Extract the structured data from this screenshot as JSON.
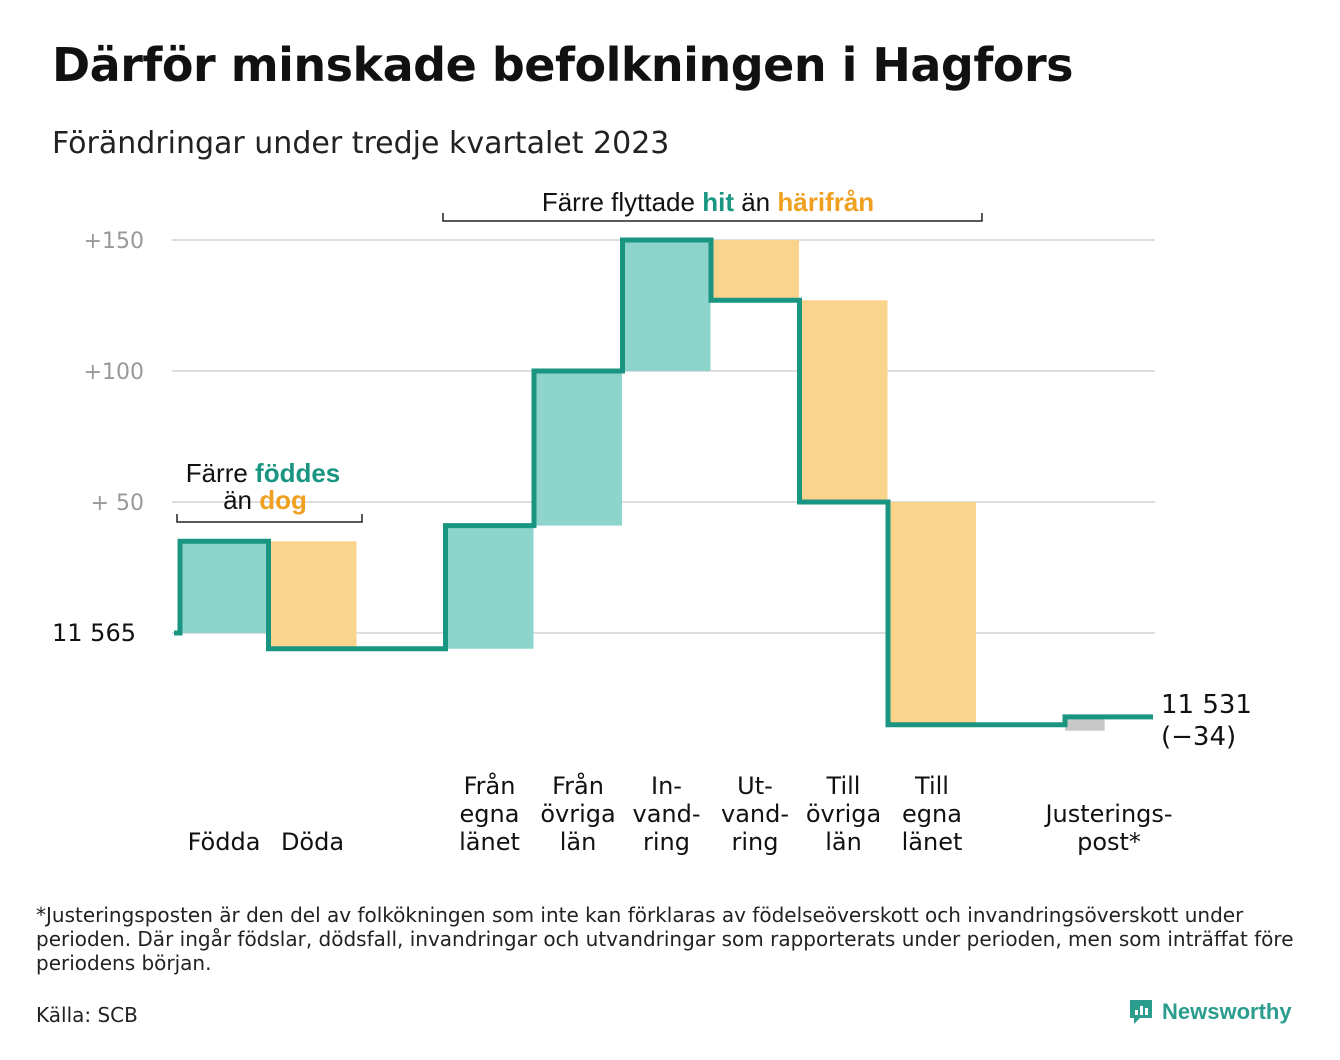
{
  "header": {
    "title": "Därför minskade befolkningen i Hagfors",
    "subtitle": "Förändringar under tredje kvartalet 2023"
  },
  "colors": {
    "increase": "#8dd5cc",
    "decrease": "#fad48c",
    "line": "#1a9582",
    "adjustment": "#c8c8c8",
    "grid": "#dddddd",
    "tick": "#999999",
    "teal_text": "#1a9582",
    "orange_text": "#f0a020"
  },
  "chart_data": {
    "type": "waterfall",
    "start_value": 11565,
    "start_label": "11   565",
    "end_label_line1": "11 531",
    "end_label_line2": "(−34)",
    "ylim": [
      -38,
      150
    ],
    "y_ticks": [
      {
        "value": 150,
        "label": "+150"
      },
      {
        "value": 100,
        "label": "+100"
      },
      {
        "value": 50,
        "label": "+  50"
      }
    ],
    "steps": [
      {
        "key": "fodda",
        "label": [
          "Födda"
        ],
        "change": 35,
        "kind": "increase"
      },
      {
        "key": "doda",
        "label": [
          "Döda"
        ],
        "change": -41,
        "kind": "decrease"
      },
      {
        "key": "gap",
        "label": [],
        "change": 0,
        "kind": "none"
      },
      {
        "key": "fran_egna",
        "label": [
          "Från",
          "egna",
          "länet"
        ],
        "change": 47,
        "kind": "increase"
      },
      {
        "key": "fran_ovriga",
        "label": [
          "Från",
          "övriga",
          "län"
        ],
        "change": 59,
        "kind": "increase"
      },
      {
        "key": "invandring",
        "label": [
          "In-",
          "vand-",
          "ring"
        ],
        "change": 50,
        "kind": "increase"
      },
      {
        "key": "utvandring",
        "label": [
          "Ut-",
          "vand-",
          "ring"
        ],
        "change": -23,
        "kind": "decrease"
      },
      {
        "key": "till_ovriga",
        "label": [
          "Till",
          "övriga",
          "län"
        ],
        "change": -77,
        "kind": "decrease"
      },
      {
        "key": "till_egna",
        "label": [
          "Till",
          "egna",
          "länet"
        ],
        "change": -85,
        "kind": "decrease"
      },
      {
        "key": "gap2",
        "label": [],
        "change": 0,
        "kind": "none"
      },
      {
        "key": "justering",
        "label": [
          "Justerings-",
          "post*"
        ],
        "change": 3,
        "kind": "adjustment"
      }
    ],
    "annotations": {
      "births": {
        "line1_a": "Färre ",
        "line1_b": "föddes",
        "line2_a": "än ",
        "line2_b": "dog"
      },
      "migration": {
        "a": "Färre flyttade ",
        "b": "hit",
        "c": " än ",
        "d": "härifrån"
      }
    }
  },
  "footer": {
    "footnote": "*Justeringsposten är den del av folkökningen som inte kan förklaras av födelseöverskott och invandringsöverskott under perioden. Där ingår födslar, dödsfall, invandringar och utvandringar som rapporterats under perioden, men som inträffat före periodens början.",
    "source": "Källa: SCB",
    "brand": "Newsworthy"
  }
}
